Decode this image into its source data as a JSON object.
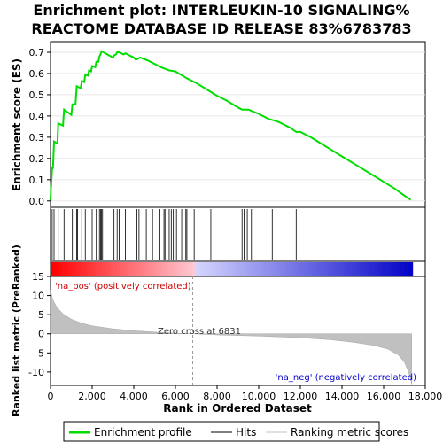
{
  "title_line1": "Enrichment plot: INTERLEUKIN-10 SIGNALING%",
  "title_line2": "REACTOME DATABASE ID RELEASE 83%6783783",
  "chart_data": {
    "type": "line",
    "x_max": 17400,
    "x_ticks": [
      "0",
      "2,000",
      "4,000",
      "6,000",
      "8,000",
      "10,000",
      "12,000",
      "14,000",
      "16,000",
      "18,000"
    ],
    "x_tick_values": [
      0,
      2000,
      4000,
      6000,
      8000,
      10000,
      12000,
      14000,
      16000,
      18000
    ],
    "xlabel": "Rank in Ordered Dataset",
    "es": {
      "ylabel": "Enrichment score (ES)",
      "ylim": [
        -0.03,
        0.75
      ],
      "y_ticks": [
        "0.0",
        "0.1",
        "0.2",
        "0.3",
        "0.4",
        "0.5",
        "0.6",
        "0.7"
      ],
      "y_tick_values": [
        0,
        0.1,
        0.2,
        0.3,
        0.4,
        0.5,
        0.6,
        0.7
      ],
      "series_name": "Enrichment profile",
      "color": "#00dd00",
      "points": [
        [
          0,
          0
        ],
        [
          20,
          0.06
        ],
        [
          80,
          0.155
        ],
        [
          120,
          0.155
        ],
        [
          170,
          0.28
        ],
        [
          330,
          0.27
        ],
        [
          370,
          0.365
        ],
        [
          600,
          0.355
        ],
        [
          650,
          0.43
        ],
        [
          1000,
          0.405
        ],
        [
          1050,
          0.455
        ],
        [
          1200,
          0.455
        ],
        [
          1260,
          0.54
        ],
        [
          1450,
          0.53
        ],
        [
          1500,
          0.565
        ],
        [
          1620,
          0.56
        ],
        [
          1670,
          0.595
        ],
        [
          1800,
          0.59
        ],
        [
          1850,
          0.615
        ],
        [
          1950,
          0.61
        ],
        [
          2000,
          0.635
        ],
        [
          2150,
          0.63
        ],
        [
          2200,
          0.655
        ],
        [
          2300,
          0.655
        ],
        [
          2350,
          0.68
        ],
        [
          2400,
          0.69
        ],
        [
          2450,
          0.705
        ],
        [
          3000,
          0.675
        ],
        [
          3050,
          0.685
        ],
        [
          3150,
          0.69
        ],
        [
          3200,
          0.7
        ],
        [
          3300,
          0.7
        ],
        [
          3500,
          0.69
        ],
        [
          3600,
          0.695
        ],
        [
          3800,
          0.685
        ],
        [
          4000,
          0.675
        ],
        [
          4100,
          0.665
        ],
        [
          4200,
          0.67
        ],
        [
          4300,
          0.675
        ],
        [
          4700,
          0.66
        ],
        [
          5000,
          0.645
        ],
        [
          5300,
          0.63
        ],
        [
          5700,
          0.615
        ],
        [
          6000,
          0.61
        ],
        [
          6500,
          0.58
        ],
        [
          7000,
          0.555
        ],
        [
          7500,
          0.525
        ],
        [
          8000,
          0.495
        ],
        [
          8500,
          0.47
        ],
        [
          9000,
          0.44
        ],
        [
          9200,
          0.43
        ],
        [
          9500,
          0.43
        ],
        [
          10000,
          0.41
        ],
        [
          10500,
          0.385
        ],
        [
          10700,
          0.38
        ],
        [
          11000,
          0.37
        ],
        [
          11500,
          0.345
        ],
        [
          11800,
          0.325
        ],
        [
          12000,
          0.325
        ],
        [
          12500,
          0.3
        ],
        [
          13000,
          0.27
        ],
        [
          13500,
          0.24
        ],
        [
          14000,
          0.21
        ],
        [
          14500,
          0.18
        ],
        [
          15000,
          0.15
        ],
        [
          15500,
          0.12
        ],
        [
          16000,
          0.09
        ],
        [
          16500,
          0.06
        ],
        [
          17000,
          0.025
        ],
        [
          17300,
          0.005
        ]
      ]
    },
    "hits": [
      0,
      80,
      170,
      370,
      650,
      1050,
      1260,
      1300,
      1500,
      1670,
      1850,
      2000,
      2200,
      2350,
      2400,
      2450,
      2500,
      3050,
      3200,
      3300,
      3600,
      4150,
      4250,
      4600,
      4900,
      5250,
      5450,
      5500,
      5700,
      5800,
      5900,
      6050,
      6300,
      6500,
      6550,
      6900,
      7700,
      7850,
      9200,
      9300,
      9450,
      9650,
      10650,
      11800
    ],
    "ranked_metric": {
      "ylabel": "Ranked list metric (PreRanked)",
      "ylim": [
        -13.5,
        15
      ],
      "y_ticks": [
        "-10",
        "-5",
        "0",
        "5",
        "10",
        "15"
      ],
      "y_tick_values": [
        -10,
        -5,
        0,
        5,
        10,
        15
      ],
      "series_name": "Ranking metric scores",
      "color": "#c0c0c0",
      "points": [
        [
          0,
          11.5
        ],
        [
          100,
          9
        ],
        [
          300,
          7
        ],
        [
          600,
          5.2
        ],
        [
          1000,
          3.8
        ],
        [
          1500,
          2.8
        ],
        [
          2000,
          2.1
        ],
        [
          3000,
          1.3
        ],
        [
          4000,
          0.8
        ],
        [
          5000,
          0.45
        ],
        [
          6000,
          0.15
        ],
        [
          6831,
          0
        ],
        [
          8000,
          -0.3
        ],
        [
          10000,
          -0.6
        ],
        [
          12000,
          -1.0
        ],
        [
          13500,
          -1.6
        ],
        [
          14500,
          -2.2
        ],
        [
          15500,
          -3.0
        ],
        [
          16200,
          -4.0
        ],
        [
          16700,
          -5.5
        ],
        [
          17000,
          -7.5
        ],
        [
          17200,
          -10
        ],
        [
          17350,
          -13.2
        ]
      ]
    },
    "zero_cross_label": "Zero cross at 6831",
    "zero_cross": 6831,
    "pos_label": "'na_pos' (positively correlated)",
    "neg_label": "'na_neg' (negatively correlated)",
    "legend": {
      "items": [
        {
          "label": "Enrichment profile",
          "color": "#00dd00"
        },
        {
          "label": "Hits",
          "color": "#000000"
        },
        {
          "label": "Ranking metric scores",
          "color": "#c0c0c0"
        }
      ]
    }
  }
}
